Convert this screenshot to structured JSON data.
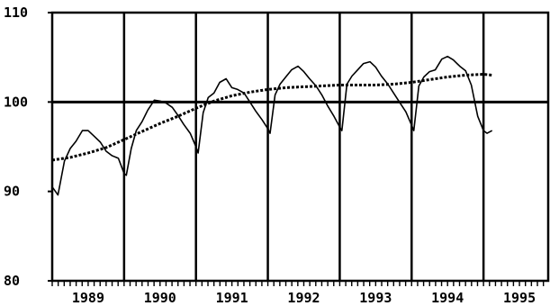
{
  "chart_data": {
    "type": "line",
    "title": "",
    "xlabel": "",
    "ylabel": "",
    "xlim": [
      1988.5,
      1995.4
    ],
    "ylim": [
      80,
      110
    ],
    "y_ticks": [
      80,
      90,
      100,
      110
    ],
    "x_ticks": [
      "1989",
      "1990",
      "1991",
      "1992",
      "1993",
      "1994",
      "1995"
    ],
    "x_tick_positions": [
      1989,
      1990,
      1991,
      1992,
      1993,
      1994,
      1995
    ],
    "year_dividers": [
      1989.5,
      1990.5,
      1991.5,
      1992.5,
      1993.5,
      1994.5
    ],
    "reference_line": 100,
    "grid": false,
    "legend": "none",
    "series": [
      {
        "style": "solid",
        "x": [
          1988.5,
          1988.58,
          1988.67,
          1988.75,
          1988.83,
          1988.92,
          1989.0,
          1989.08,
          1989.17,
          1989.25,
          1989.33,
          1989.42,
          1989.5,
          1989.53,
          1989.6,
          1989.67,
          1989.75,
          1989.83,
          1989.92,
          1990.0,
          1990.08,
          1990.17,
          1990.25,
          1990.33,
          1990.42,
          1990.5,
          1990.53,
          1990.6,
          1990.67,
          1990.75,
          1990.83,
          1990.92,
          1991.0,
          1991.08,
          1991.17,
          1991.25,
          1991.33,
          1991.42,
          1991.5,
          1991.53,
          1991.6,
          1991.67,
          1991.75,
          1991.83,
          1991.92,
          1992.0,
          1992.08,
          1992.17,
          1992.25,
          1992.33,
          1992.42,
          1992.5,
          1992.53,
          1992.6,
          1992.67,
          1992.75,
          1992.83,
          1992.92,
          1993.0,
          1993.08,
          1993.17,
          1993.25,
          1993.33,
          1993.42,
          1993.5,
          1993.53,
          1993.6,
          1993.67,
          1993.75,
          1993.83,
          1993.92,
          1994.0,
          1994.08,
          1994.17,
          1994.25,
          1994.33,
          1994.42,
          1994.5,
          1994.55,
          1994.62
        ],
        "y": [
          90.5,
          89.6,
          93.4,
          94.8,
          95.6,
          96.8,
          96.8,
          96.2,
          95.5,
          94.5,
          94.0,
          93.7,
          92.0,
          91.8,
          94.8,
          96.8,
          97.8,
          99.1,
          100.2,
          100.1,
          99.9,
          99.4,
          98.5,
          97.5,
          96.5,
          95.0,
          94.3,
          98.8,
          100.5,
          101.0,
          102.2,
          102.6,
          101.6,
          101.4,
          101.0,
          100.0,
          99.0,
          98.0,
          97.0,
          96.5,
          100.8,
          102.0,
          102.8,
          103.6,
          104.0,
          103.4,
          102.6,
          101.8,
          100.8,
          99.6,
          98.4,
          97.2,
          96.8,
          102.0,
          102.9,
          103.6,
          104.3,
          104.5,
          103.9,
          102.9,
          102.0,
          101.0,
          100.0,
          98.9,
          97.4,
          96.8,
          101.8,
          102.8,
          103.4,
          103.6,
          104.8,
          105.1,
          104.7,
          104.0,
          103.5,
          101.9,
          98.4,
          96.8,
          96.5,
          96.8
        ]
      },
      {
        "style": "dashed",
        "x": [
          1988.5,
          1988.75,
          1989.0,
          1989.25,
          1989.5,
          1989.75,
          1990.0,
          1990.25,
          1990.5,
          1990.75,
          1991.0,
          1991.25,
          1991.5,
          1991.75,
          1992.0,
          1992.25,
          1992.5,
          1992.75,
          1993.0,
          1993.25,
          1993.5,
          1993.75,
          1994.0,
          1994.25,
          1994.5,
          1994.62
        ],
        "y": [
          93.5,
          93.8,
          94.3,
          94.9,
          95.8,
          96.7,
          97.6,
          98.4,
          99.3,
          100.1,
          100.7,
          101.1,
          101.4,
          101.6,
          101.7,
          101.8,
          101.9,
          101.9,
          101.9,
          102.0,
          102.2,
          102.5,
          102.8,
          103.0,
          103.1,
          103.0
        ]
      }
    ]
  }
}
